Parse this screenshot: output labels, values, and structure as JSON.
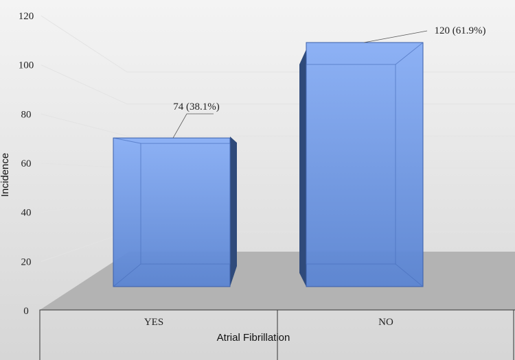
{
  "chart_data": {
    "type": "bar",
    "title": "",
    "xlabel": "Atrial Fibrillation",
    "ylabel": "Incidence",
    "categories": [
      "YES",
      "NO"
    ],
    "values": [
      74,
      120
    ],
    "data_labels": [
      "74 (38.1%)",
      "120 (61.9%)"
    ],
    "yticks": [
      0,
      20,
      40,
      60,
      80,
      100,
      120
    ],
    "ylim": [
      0,
      120
    ],
    "grid": true,
    "legend": "none",
    "style": "3d-column",
    "colors": {
      "bar_front_top": "#88aef5",
      "bar_front_bottom": "#5a84d2",
      "bar_side": "#2f4a7a",
      "bar_edge": "#3a5ea8",
      "floor": "#b3b3b3",
      "background_top": "#f4f4f4",
      "background_bottom": "#d6d6d6"
    }
  }
}
